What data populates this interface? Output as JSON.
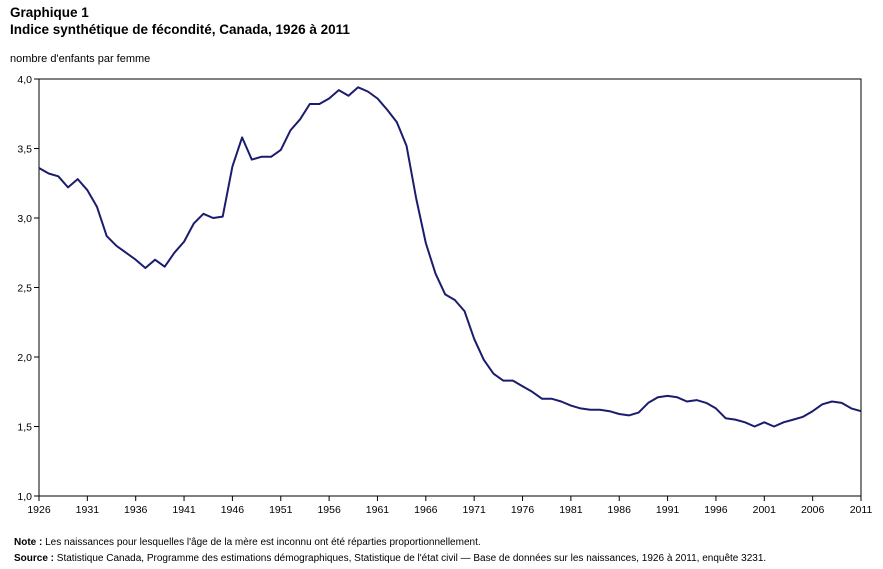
{
  "header": {
    "label": "Graphique 1",
    "title": "Indice synthétique de fécondité, Canada, 1926 à 2011"
  },
  "chart_data": {
    "type": "line",
    "title": "Indice synthétique de fécondité, Canada, 1926 à 2011",
    "ylabel": "nombre d'enfants par femme",
    "xlabel": "",
    "xlim": [
      1926,
      2011
    ],
    "ylim": [
      1.0,
      4.0
    ],
    "x_ticks": [
      "1926",
      "1931",
      "1936",
      "1941",
      "1946",
      "1951",
      "1956",
      "1961",
      "1966",
      "1971",
      "1976",
      "1981",
      "1986",
      "1991",
      "1996",
      "2001",
      "2006",
      "2011"
    ],
    "y_ticks": [
      "1,0",
      "1,5",
      "2,0",
      "2,5",
      "3,0",
      "3,5",
      "4,0"
    ],
    "grid": false,
    "legend": "none",
    "line_color": "#1b1c6e",
    "series": [
      {
        "x": [
          1926,
          1927,
          1928,
          1929,
          1930,
          1931,
          1932,
          1933,
          1934,
          1935,
          1936,
          1937,
          1938,
          1939,
          1940,
          1941,
          1942,
          1943,
          1944,
          1945,
          1946,
          1947,
          1948,
          1949,
          1950,
          1951,
          1952,
          1953,
          1954,
          1955,
          1956,
          1957,
          1958,
          1959,
          1960,
          1961,
          1962,
          1963,
          1964,
          1965,
          1966,
          1967,
          1968,
          1969,
          1970,
          1971,
          1972,
          1973,
          1974,
          1975,
          1976,
          1977,
          1978,
          1979,
          1980,
          1981,
          1982,
          1983,
          1984,
          1985,
          1986,
          1987,
          1988,
          1989,
          1990,
          1991,
          1992,
          1993,
          1994,
          1995,
          1996,
          1997,
          1998,
          1999,
          2000,
          2001,
          2002,
          2003,
          2004,
          2005,
          2006,
          2007,
          2008,
          2009,
          2010,
          2011
        ],
        "values": [
          3.36,
          3.32,
          3.3,
          3.22,
          3.28,
          3.2,
          3.08,
          2.87,
          2.8,
          2.75,
          2.7,
          2.64,
          2.7,
          2.65,
          2.75,
          2.83,
          2.96,
          3.03,
          3.0,
          3.01,
          3.37,
          3.58,
          3.42,
          3.44,
          3.44,
          3.49,
          3.63,
          3.71,
          3.82,
          3.82,
          3.86,
          3.92,
          3.88,
          3.94,
          3.91,
          3.86,
          3.78,
          3.69,
          3.52,
          3.14,
          2.82,
          2.6,
          2.45,
          2.41,
          2.33,
          2.13,
          1.98,
          1.88,
          1.83,
          1.83,
          1.79,
          1.75,
          1.7,
          1.7,
          1.68,
          1.65,
          1.63,
          1.62,
          1.62,
          1.61,
          1.59,
          1.58,
          1.6,
          1.67,
          1.71,
          1.72,
          1.71,
          1.68,
          1.69,
          1.67,
          1.63,
          1.56,
          1.55,
          1.53,
          1.5,
          1.53,
          1.5,
          1.53,
          1.55,
          1.57,
          1.61,
          1.66,
          1.68,
          1.67,
          1.63,
          1.61
        ]
      }
    ]
  },
  "footnotes": {
    "note_label": "Note :",
    "note_text": " Les naissances pour lesquelles l'âge de la mère est inconnu ont été réparties proportionnellement.",
    "source_label": "Source :",
    "source_text": " Statistique Canada, Programme des estimations démographiques, Statistique de l'état civil — Base de données sur les naissances, 1926 à 2011, enquête 3231."
  }
}
